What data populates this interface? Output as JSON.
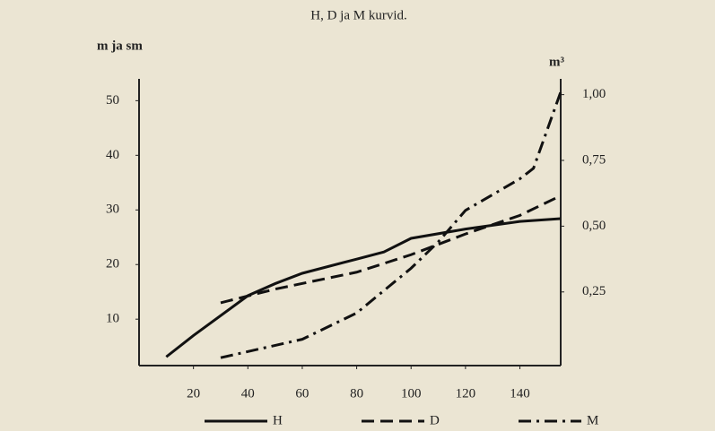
{
  "chart_data": {
    "type": "line",
    "title": "H, D ja M kurvid.",
    "ylabel": "m ja sm",
    "y2label": "m³",
    "xlim": [
      0,
      155
    ],
    "xticks": [
      20,
      40,
      60,
      80,
      100,
      120,
      140
    ],
    "ylim": [
      1.5,
      54
    ],
    "yticks": [
      10,
      20,
      30,
      40,
      50
    ],
    "y2lim": [
      -0.03,
      1.06
    ],
    "y2ticks": [
      {
        "value": 0.25,
        "label": "0,25"
      },
      {
        "value": 0.5,
        "label": "0,50"
      },
      {
        "value": 0.75,
        "label": "0,75"
      },
      {
        "value": 1.0,
        "label": "1,00"
      }
    ],
    "series": [
      {
        "name": "H",
        "color": "#111",
        "dash": "",
        "x": [
          10,
          20,
          40,
          50,
          60,
          80,
          90,
          100,
          120,
          140,
          155
        ],
        "values": [
          3.1,
          7,
          14.3,
          16.5,
          18.4,
          21,
          22.3,
          24.8,
          26.5,
          27.9,
          28.4
        ]
      },
      {
        "name": "D",
        "color": "#111",
        "dash": "14 7",
        "x": [
          30,
          50,
          80,
          100,
          120,
          140,
          155
        ],
        "values": [
          13,
          15.5,
          18.6,
          21.8,
          25.6,
          29,
          32.6
        ]
      },
      {
        "name": "M",
        "color": "#111",
        "dash": "14 6 3 6",
        "axis": "y2",
        "x": [
          30,
          60,
          80,
          100,
          110,
          120,
          140,
          145,
          155
        ],
        "values": [
          0,
          0.07,
          0.17,
          0.34,
          0.44,
          0.56,
          0.68,
          0.72,
          1.01
        ]
      }
    ]
  }
}
